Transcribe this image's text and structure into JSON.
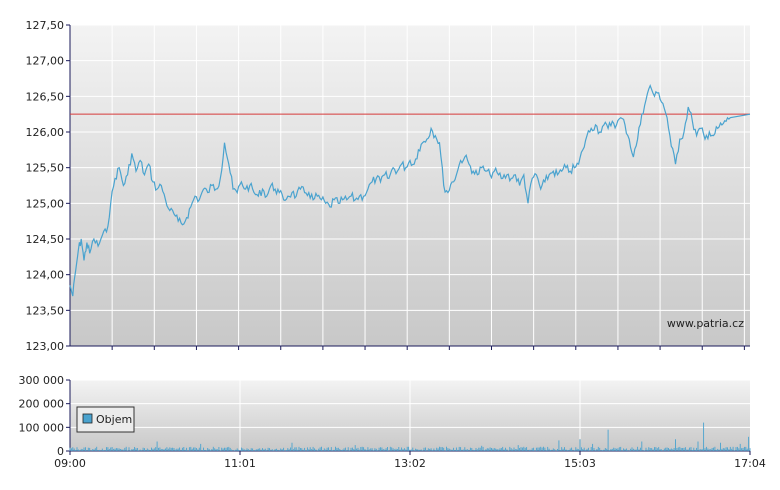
{
  "watermark": "www.patria.cz",
  "legend_label": "Objem",
  "colors": {
    "price_line": "#4aa3cf",
    "reference_line": "#d63a3a",
    "volume_bar": "#4aa3cf",
    "grid": "#ffffff",
    "plot_bg_top": "#f2f2f2",
    "plot_bg_bottom": "#c9c9c9",
    "axis": "#1a1a5a"
  },
  "chart_data": [
    {
      "type": "line",
      "name": "price",
      "y_ticks": [
        "127,50",
        "127,00",
        "126,50",
        "126,00",
        "125,50",
        "125,00",
        "124,50",
        "124,00",
        "123,50",
        "123,00"
      ],
      "ylim": [
        123.0,
        127.5
      ],
      "x_range": [
        "09:00",
        "17:04"
      ],
      "grid": true,
      "reference_line": 126.25,
      "points": [
        [
          "09:00",
          123.85
        ],
        [
          "09:02",
          123.7
        ],
        [
          "09:04",
          124.05
        ],
        [
          "09:06",
          124.35
        ],
        [
          "09:08",
          124.5
        ],
        [
          "09:10",
          124.2
        ],
        [
          "09:12",
          124.45
        ],
        [
          "09:14",
          124.3
        ],
        [
          "09:17",
          124.5
        ],
        [
          "09:20",
          124.4
        ],
        [
          "09:23",
          124.55
        ],
        [
          "09:26",
          124.6
        ],
        [
          "09:29",
          125.0
        ],
        [
          "09:32",
          125.35
        ],
        [
          "09:35",
          125.5
        ],
        [
          "09:38",
          125.25
        ],
        [
          "09:41",
          125.4
        ],
        [
          "09:44",
          125.7
        ],
        [
          "09:47",
          125.45
        ],
        [
          "09:50",
          125.6
        ],
        [
          "09:53",
          125.4
        ],
        [
          "09:56",
          125.55
        ],
        [
          "09:59",
          125.3
        ],
        [
          "10:02",
          125.2
        ],
        [
          "10:05",
          125.25
        ],
        [
          "10:08",
          125.05
        ],
        [
          "10:11",
          124.9
        ],
        [
          "10:14",
          124.85
        ],
        [
          "10:17",
          124.75
        ],
        [
          "10:20",
          124.7
        ],
        [
          "10:23",
          124.8
        ],
        [
          "10:26",
          124.95
        ],
        [
          "10:29",
          125.1
        ],
        [
          "10:32",
          125.05
        ],
        [
          "10:35",
          125.2
        ],
        [
          "10:38",
          125.15
        ],
        [
          "10:41",
          125.25
        ],
        [
          "10:44",
          125.2
        ],
        [
          "10:47",
          125.35
        ],
        [
          "10:50",
          125.85
        ],
        [
          "10:53",
          125.55
        ],
        [
          "10:56",
          125.2
        ],
        [
          "10:59",
          125.15
        ],
        [
          "11:02",
          125.3
        ],
        [
          "11:05",
          125.2
        ],
        [
          "11:08",
          125.25
        ],
        [
          "11:11",
          125.15
        ],
        [
          "11:14",
          125.1
        ],
        [
          "11:17",
          125.2
        ],
        [
          "11:20",
          125.1
        ],
        [
          "11:23",
          125.25
        ],
        [
          "11:26",
          125.2
        ],
        [
          "11:29",
          125.15
        ],
        [
          "11:32",
          125.05
        ],
        [
          "11:35",
          125.1
        ],
        [
          "11:38",
          125.15
        ],
        [
          "11:41",
          125.1
        ],
        [
          "11:44",
          125.2
        ],
        [
          "11:47",
          125.15
        ],
        [
          "11:50",
          125.15
        ],
        [
          "11:53",
          125.05
        ],
        [
          "11:56",
          125.1
        ],
        [
          "11:59",
          125.05
        ],
        [
          "12:02",
          125.0
        ],
        [
          "12:05",
          124.95
        ],
        [
          "12:08",
          125.05
        ],
        [
          "12:11",
          125.0
        ],
        [
          "12:14",
          125.05
        ],
        [
          "12:17",
          125.05
        ],
        [
          "12:20",
          125.1
        ],
        [
          "12:23",
          125.05
        ],
        [
          "12:26",
          125.1
        ],
        [
          "12:29",
          125.1
        ],
        [
          "12:32",
          125.2
        ],
        [
          "12:35",
          125.3
        ],
        [
          "12:38",
          125.35
        ],
        [
          "12:41",
          125.3
        ],
        [
          "12:44",
          125.4
        ],
        [
          "12:47",
          125.35
        ],
        [
          "12:50",
          125.5
        ],
        [
          "12:53",
          125.45
        ],
        [
          "12:56",
          125.55
        ],
        [
          "12:59",
          125.5
        ],
        [
          "13:02",
          125.6
        ],
        [
          "13:05",
          125.55
        ],
        [
          "13:08",
          125.75
        ],
        [
          "13:11",
          125.85
        ],
        [
          "13:14",
          125.9
        ],
        [
          "13:17",
          126.05
        ],
        [
          "13:20",
          125.95
        ],
        [
          "13:23",
          125.85
        ],
        [
          "13:26",
          125.25
        ],
        [
          "13:29",
          125.15
        ],
        [
          "13:32",
          125.3
        ],
        [
          "13:35",
          125.4
        ],
        [
          "13:38",
          125.6
        ],
        [
          "13:41",
          125.65
        ],
        [
          "13:44",
          125.55
        ],
        [
          "13:47",
          125.45
        ],
        [
          "13:50",
          125.4
        ],
        [
          "13:53",
          125.5
        ],
        [
          "13:56",
          125.45
        ],
        [
          "13:59",
          125.4
        ],
        [
          "14:02",
          125.45
        ],
        [
          "14:05",
          125.4
        ],
        [
          "14:08",
          125.35
        ],
        [
          "14:11",
          125.4
        ],
        [
          "14:14",
          125.35
        ],
        [
          "14:17",
          125.4
        ],
        [
          "14:20",
          125.25
        ],
        [
          "14:23",
          125.4
        ],
        [
          "14:26",
          125.0
        ],
        [
          "14:29",
          125.35
        ],
        [
          "14:32",
          125.4
        ],
        [
          "14:35",
          125.2
        ],
        [
          "14:38",
          125.3
        ],
        [
          "14:41",
          125.4
        ],
        [
          "14:44",
          125.45
        ],
        [
          "14:47",
          125.4
        ],
        [
          "14:50",
          125.45
        ],
        [
          "14:53",
          125.5
        ],
        [
          "14:56",
          125.45
        ],
        [
          "14:59",
          125.5
        ],
        [
          "15:02",
          125.55
        ],
        [
          "15:05",
          125.75
        ],
        [
          "15:08",
          125.95
        ],
        [
          "15:11",
          126.05
        ],
        [
          "15:14",
          126.1
        ],
        [
          "15:17",
          126.0
        ],
        [
          "15:20",
          126.1
        ],
        [
          "15:23",
          126.05
        ],
        [
          "15:26",
          126.15
        ],
        [
          "15:29",
          126.1
        ],
        [
          "15:32",
          126.2
        ],
        [
          "15:35",
          126.1
        ],
        [
          "15:38",
          125.9
        ],
        [
          "15:41",
          125.65
        ],
        [
          "15:44",
          125.9
        ],
        [
          "15:47",
          126.25
        ],
        [
          "15:50",
          126.45
        ],
        [
          "15:53",
          126.65
        ],
        [
          "15:56",
          126.5
        ],
        [
          "15:59",
          126.55
        ],
        [
          "16:02",
          126.4
        ],
        [
          "16:05",
          126.2
        ],
        [
          "16:08",
          125.8
        ],
        [
          "16:11",
          125.55
        ],
        [
          "16:14",
          125.9
        ],
        [
          "16:17",
          126.0
        ],
        [
          "16:20",
          126.35
        ],
        [
          "16:23",
          126.15
        ],
        [
          "16:26",
          125.95
        ],
        [
          "16:29",
          126.05
        ],
        [
          "16:32",
          125.9
        ],
        [
          "16:35",
          126.0
        ],
        [
          "16:38",
          125.95
        ],
        [
          "16:41",
          126.05
        ],
        [
          "16:44",
          126.1
        ],
        [
          "16:47",
          126.15
        ],
        [
          "16:50",
          126.2
        ],
        [
          "17:04",
          126.25
        ]
      ]
    },
    {
      "type": "bar",
      "name": "Objem",
      "y_ticks": [
        "300 000",
        "200 000",
        "100 000",
        "0"
      ],
      "ylim": [
        0,
        300000
      ],
      "x_ticks": [
        "09:00",
        "11:01",
        "13:02",
        "15:03",
        "17:04"
      ],
      "x_range": [
        "09:00",
        "17:04"
      ],
      "grid": true,
      "legend": "bottom-left",
      "spikes": [
        [
          "10:02",
          40000
        ],
        [
          "10:33",
          30000
        ],
        [
          "11:38",
          35000
        ],
        [
          "12:23",
          25000
        ],
        [
          "13:53",
          22000
        ],
        [
          "14:19",
          25000
        ],
        [
          "14:48",
          45000
        ],
        [
          "15:03",
          50000
        ],
        [
          "15:12",
          30000
        ],
        [
          "15:23",
          90000
        ],
        [
          "15:47",
          40000
        ],
        [
          "16:11",
          50000
        ],
        [
          "16:27",
          40000
        ],
        [
          "16:31",
          120000
        ],
        [
          "16:43",
          35000
        ],
        [
          "16:57",
          30000
        ],
        [
          "17:03",
          60000
        ]
      ],
      "typical_value": 12000
    }
  ]
}
